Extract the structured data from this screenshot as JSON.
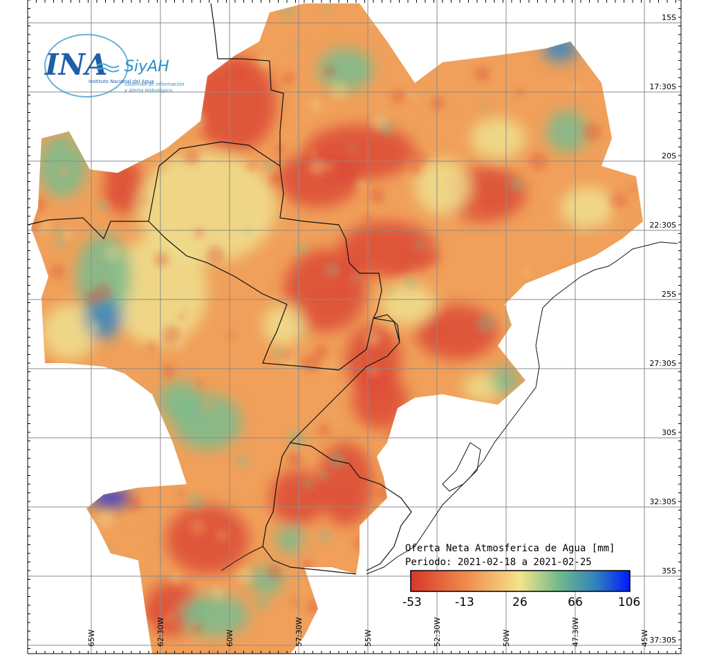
{
  "logo": {
    "ina": "INA",
    "siyah": "SiyAH",
    "line1": "Instituto Nacional del Agua",
    "line2": "Sistemas de información",
    "line3": "y Alerta Hidrológico"
  },
  "legend": {
    "title": "Oferta Neta Atmosferica de Agua [mm]",
    "period": "Periodo: 2021-02-18 a 2021-02-25",
    "ticks": [
      "-53",
      "-13",
      "26",
      "66",
      "106"
    ],
    "colors": [
      "#d7372b",
      "#f08a4b",
      "#f4e38d",
      "#6fb98b",
      "#2f7fc0",
      "#0018ff"
    ]
  },
  "lat_labels": [
    "15S",
    "17:30S",
    "20S",
    "22:30S",
    "25S",
    "27:30S",
    "30S",
    "32:30S",
    "35S",
    "37:30S"
  ],
  "lon_labels": [
    "65W",
    "62:30W",
    "60W",
    "57:30W",
    "55W",
    "52:30W",
    "50W",
    "47:30W",
    "45W"
  ],
  "field": {
    "base_color": "#f0a05a",
    "red": "#dc4a37",
    "green": "#79bc8e",
    "blue": "#3a86c0",
    "yellow": "#efdf8e",
    "deep_blue": "#0a2be0"
  }
}
